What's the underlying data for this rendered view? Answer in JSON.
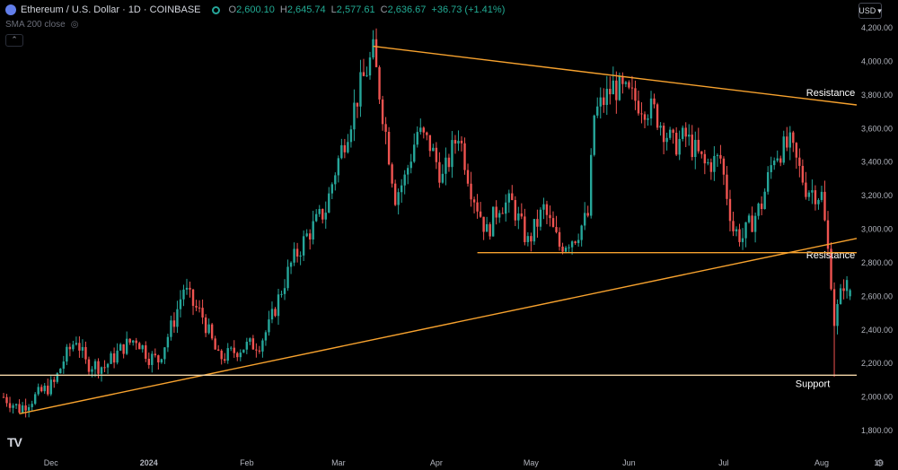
{
  "header": {
    "title": "Ethereum / U.S. Dollar · 1D · COINBASE",
    "open_label": "O",
    "open": "2,600.10",
    "high_label": "H",
    "high": "2,645.74",
    "low_label": "L",
    "low": "2,577.61",
    "close_label": "C",
    "close": "2,636.67",
    "change": "+36.73 (+1.41%)",
    "indicator": "SMA 200 close",
    "currency": "USD"
  },
  "colors": {
    "up": "#26a69a",
    "down": "#ef5350",
    "trendline": "#f7a22e",
    "support_line": "#f3d6a8",
    "axis_text": "#b2b5be",
    "background": "#000000"
  },
  "chart_data": {
    "type": "candlestick",
    "symbol": "ETH/USD",
    "interval": "1D",
    "x_tick_labels": [
      "Dec",
      "2024",
      "Feb",
      "Mar",
      "Apr",
      "May",
      "Jun",
      "Jul",
      "Aug",
      "19"
    ],
    "y_tick_labels": [
      "4,200.00",
      "4,000.00",
      "3,800.00",
      "3,600.00",
      "3,400.00",
      "3,200.00",
      "3,000.00",
      "2,800.00",
      "2,600.00",
      "2,400.00",
      "2,200.00",
      "2,000.00",
      "1,800.00"
    ],
    "ylim": [
      1780,
      4250
    ],
    "close_path": [
      [
        "2023-11-16",
        2000
      ],
      [
        "2023-11-21",
        1930
      ],
      [
        "2023-11-28",
        2030
      ],
      [
        "2023-12-02",
        2080
      ],
      [
        "2023-12-05",
        2220
      ],
      [
        "2023-12-09",
        2350
      ],
      [
        "2023-12-12",
        2200
      ],
      [
        "2023-12-18",
        2180
      ],
      [
        "2023-12-24",
        2300
      ],
      [
        "2023-12-28",
        2350
      ],
      [
        "2024-01-01",
        2240
      ],
      [
        "2024-01-04",
        2220
      ],
      [
        "2024-01-09",
        2460
      ],
      [
        "2024-01-12",
        2650
      ],
      [
        "2024-01-15",
        2550
      ],
      [
        "2024-01-18",
        2480
      ],
      [
        "2024-01-23",
        2230
      ],
      [
        "2024-01-26",
        2250
      ],
      [
        "2024-01-31",
        2300
      ],
      [
        "2024-02-05",
        2320
      ],
      [
        "2024-02-08",
        2420
      ],
      [
        "2024-02-12",
        2640
      ],
      [
        "2024-02-15",
        2790
      ],
      [
        "2024-02-20",
        2960
      ],
      [
        "2024-02-26",
        3120
      ],
      [
        "2024-02-29",
        3350
      ],
      [
        "2024-03-04",
        3600
      ],
      [
        "2024-03-08",
        3850
      ],
      [
        "2024-03-12",
        4050
      ],
      [
        "2024-03-15",
        3700
      ],
      [
        "2024-03-19",
        3200
      ],
      [
        "2024-03-22",
        3300
      ],
      [
        "2024-03-26",
        3580
      ],
      [
        "2024-03-30",
        3500
      ],
      [
        "2024-04-03",
        3300
      ],
      [
        "2024-04-08",
        3580
      ],
      [
        "2024-04-12",
        3250
      ],
      [
        "2024-04-17",
        2980
      ],
      [
        "2024-04-21",
        3150
      ],
      [
        "2024-04-25",
        3150
      ],
      [
        "2024-04-30",
        2920
      ],
      [
        "2024-05-05",
        3120
      ],
      [
        "2024-05-10",
        2900
      ],
      [
        "2024-05-15",
        2960
      ],
      [
        "2024-05-19",
        3080
      ],
      [
        "2024-05-21",
        3680
      ],
      [
        "2024-05-27",
        3850
      ],
      [
        "2024-06-03",
        3770
      ],
      [
        "2024-06-09",
        3700
      ],
      [
        "2024-06-15",
        3500
      ],
      [
        "2024-06-19",
        3550
      ],
      [
        "2024-06-25",
        3380
      ],
      [
        "2024-06-30",
        3420
      ],
      [
        "2024-07-04",
        3000
      ],
      [
        "2024-07-07",
        2950
      ],
      [
        "2024-07-13",
        3150
      ],
      [
        "2024-07-17",
        3450
      ],
      [
        "2024-07-22",
        3500
      ],
      [
        "2024-07-27",
        3250
      ],
      [
        "2024-08-01",
        3200
      ],
      [
        "2024-08-04",
        2700
      ],
      [
        "2024-08-05",
        2450
      ],
      [
        "2024-08-08",
        2680
      ],
      [
        "2024-08-10",
        2637
      ]
    ],
    "last": {
      "date": "2024-08-10",
      "open": 2600.1,
      "high": 2645.74,
      "low": 2577.61,
      "close": 2636.67
    },
    "annotations": [
      {
        "label": "Resistance",
        "kind": "descending-trendline",
        "points": [
          [
            "2024-03-12",
            4090
          ],
          [
            "2024-08-21",
            3720
          ]
        ]
      },
      {
        "label": "Resistance",
        "kind": "ascending-trendline",
        "points": [
          [
            "2023-11-21",
            1900
          ],
          [
            "2024-08-21",
            2980
          ]
        ]
      },
      {
        "label": "",
        "kind": "horizontal",
        "price": 2860,
        "from": "2024-04-14",
        "to": "2024-08-21"
      },
      {
        "label": "Support",
        "kind": "horizontal",
        "price": 2130,
        "from": "2023-11-13",
        "to": "2024-08-21"
      }
    ]
  }
}
